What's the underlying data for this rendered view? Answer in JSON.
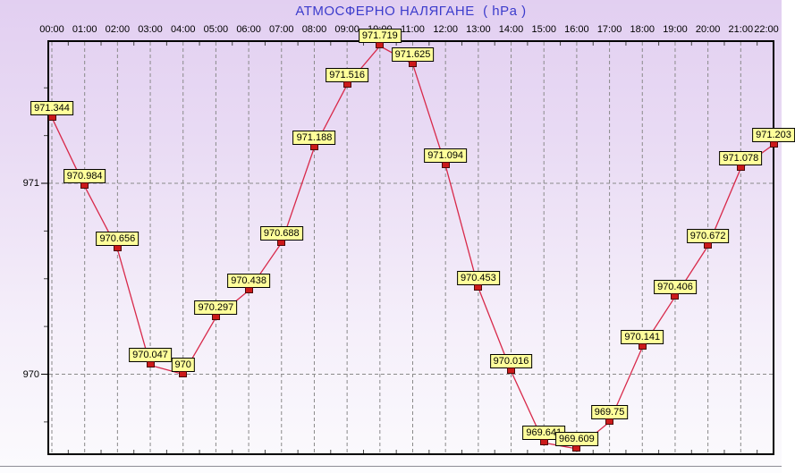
{
  "chart_data": {
    "type": "line",
    "title": "АТМОСФЕРНО НАЛЯГАНЕ  ( hPa )",
    "x": [
      "00:00",
      "01:00",
      "02:00",
      "03:00",
      "04:00",
      "05:00",
      "06:00",
      "07:00",
      "08:00",
      "09:00",
      "10:00",
      "11:00",
      "12:00",
      "13:00",
      "14:00",
      "15:00",
      "16:00",
      "17:00",
      "18:00",
      "19:00",
      "20:00",
      "21:00",
      "22:00"
    ],
    "series": [
      {
        "name": "atmospheric-pressure-hPa",
        "values": [
          971.344,
          970.984,
          970.656,
          970.047,
          970,
          970.297,
          970.438,
          970.688,
          971.188,
          971.516,
          971.719,
          971.625,
          971.094,
          970.453,
          970.016,
          969.641,
          969.609,
          969.75,
          970.141,
          970.406,
          970.672,
          971.078,
          971.203
        ]
      }
    ],
    "xlabel": "",
    "ylabel": "",
    "y_axis_tick_labels": [
      "971",
      "970"
    ],
    "y_major_ticks": [
      971,
      970
    ],
    "y_minor_tick_step": 0.25,
    "ylim": [
      969.58,
      971.75
    ],
    "grid": "dashed gray; vertical line per hour, horizontal line per major y tick",
    "legend_position": "none",
    "point_label_style": "each point carries a yellow value box above a red square marker",
    "colors": {
      "title": "#3c3ccc",
      "axis_text": "#000000",
      "line": "#d8294a",
      "marker_fill": "#cc1a1a",
      "marker_border": "#4a0a0a",
      "point_label_bg": "#ffff9b",
      "point_label_border": "#000000",
      "grid": "#8a8a8a",
      "plot_border": "#000000",
      "bg_top": "#e2cff1",
      "bg_bottom": "#fbfafd"
    }
  }
}
